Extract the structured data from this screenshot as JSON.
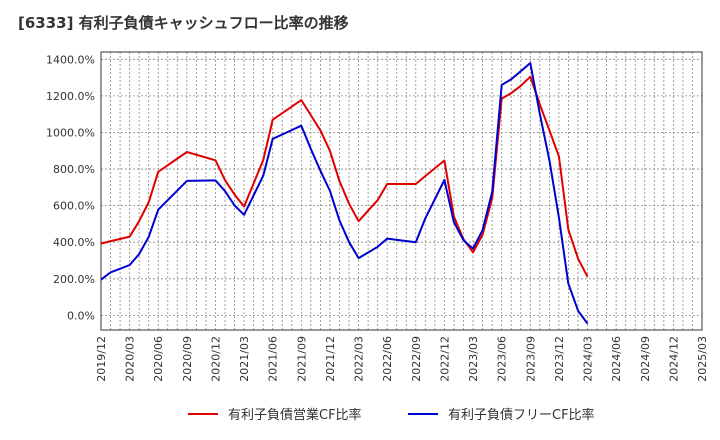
{
  "chart_data": {
    "type": "line",
    "title": "[6333]  有利子負債キャッシュフロー比率の推移",
    "y_ticks": [
      "1400.0%",
      "1200.0%",
      "1000.0%",
      "800.0%",
      "600.0%",
      "400.0%",
      "200.0%",
      "0.0%"
    ],
    "y_tick_values": [
      1400,
      1200,
      1000,
      800,
      600,
      400,
      200,
      0
    ],
    "ylim": [
      -80,
      1440
    ],
    "x_ticks": [
      "2019/12",
      "2020/03",
      "2020/06",
      "2020/09",
      "2020/12",
      "2021/03",
      "2021/06",
      "2021/09",
      "2021/12",
      "2022/03",
      "2022/06",
      "2022/09",
      "2022/12",
      "2023/03",
      "2023/06",
      "2023/09",
      "2023/12",
      "2024/03",
      "2024/06",
      "2024/09",
      "2024/12",
      "2025/03"
    ],
    "grid": true,
    "legend_position": "bottom",
    "series": [
      {
        "name": "有利子負債営業CF比率",
        "color": "#e00000",
        "points": [
          {
            "x": 0,
            "y": 393
          },
          {
            "x": 1,
            "y": 430
          },
          {
            "x": 1.33,
            "y": 515
          },
          {
            "x": 1.67,
            "y": 620
          },
          {
            "x": 2,
            "y": 785
          },
          {
            "x": 3,
            "y": 893
          },
          {
            "x": 4,
            "y": 848
          },
          {
            "x": 4.33,
            "y": 740
          },
          {
            "x": 4.67,
            "y": 660
          },
          {
            "x": 5,
            "y": 595
          },
          {
            "x": 5.67,
            "y": 850
          },
          {
            "x": 6,
            "y": 1070
          },
          {
            "x": 7,
            "y": 1177
          },
          {
            "x": 7.33,
            "y": 1095
          },
          {
            "x": 7.67,
            "y": 1010
          },
          {
            "x": 8,
            "y": 898
          },
          {
            "x": 8.33,
            "y": 735
          },
          {
            "x": 8.67,
            "y": 610
          },
          {
            "x": 9,
            "y": 515
          },
          {
            "x": 9.67,
            "y": 630
          },
          {
            "x": 10,
            "y": 718
          },
          {
            "x": 11,
            "y": 718
          },
          {
            "x": 11.67,
            "y": 805
          },
          {
            "x": 12,
            "y": 847
          },
          {
            "x": 12.33,
            "y": 540
          },
          {
            "x": 12.67,
            "y": 415
          },
          {
            "x": 13,
            "y": 345
          },
          {
            "x": 13.33,
            "y": 440
          },
          {
            "x": 13.67,
            "y": 640
          },
          {
            "x": 14,
            "y": 1185
          },
          {
            "x": 14.33,
            "y": 1215
          },
          {
            "x": 14.67,
            "y": 1255
          },
          {
            "x": 15,
            "y": 1305
          },
          {
            "x": 15.33,
            "y": 1155
          },
          {
            "x": 15.67,
            "y": 1010
          },
          {
            "x": 16,
            "y": 870
          },
          {
            "x": 16.33,
            "y": 470
          },
          {
            "x": 16.67,
            "y": 310
          },
          {
            "x": 17,
            "y": 212
          }
        ]
      },
      {
        "name": "有利子負債フリーCF比率",
        "color": "#0000d0",
        "points": [
          {
            "x": 0,
            "y": 195
          },
          {
            "x": 0.33,
            "y": 235
          },
          {
            "x": 1,
            "y": 275
          },
          {
            "x": 1.33,
            "y": 335
          },
          {
            "x": 1.67,
            "y": 430
          },
          {
            "x": 2,
            "y": 578
          },
          {
            "x": 3,
            "y": 735
          },
          {
            "x": 4,
            "y": 738
          },
          {
            "x": 4.33,
            "y": 680
          },
          {
            "x": 4.67,
            "y": 600
          },
          {
            "x": 5,
            "y": 550
          },
          {
            "x": 5.67,
            "y": 765
          },
          {
            "x": 6,
            "y": 965
          },
          {
            "x": 7,
            "y": 1037
          },
          {
            "x": 7.33,
            "y": 910
          },
          {
            "x": 7.67,
            "y": 790
          },
          {
            "x": 8,
            "y": 680
          },
          {
            "x": 8.33,
            "y": 520
          },
          {
            "x": 8.67,
            "y": 400
          },
          {
            "x": 9,
            "y": 313
          },
          {
            "x": 9.67,
            "y": 375
          },
          {
            "x": 10,
            "y": 420
          },
          {
            "x": 11,
            "y": 400
          },
          {
            "x": 11.33,
            "y": 530
          },
          {
            "x": 12,
            "y": 740
          },
          {
            "x": 12.33,
            "y": 510
          },
          {
            "x": 12.67,
            "y": 410
          },
          {
            "x": 13,
            "y": 365
          },
          {
            "x": 13.33,
            "y": 465
          },
          {
            "x": 13.67,
            "y": 675
          },
          {
            "x": 14,
            "y": 1260
          },
          {
            "x": 14.33,
            "y": 1290
          },
          {
            "x": 14.67,
            "y": 1335
          },
          {
            "x": 15,
            "y": 1380
          },
          {
            "x": 15.33,
            "y": 1105
          },
          {
            "x": 15.67,
            "y": 845
          },
          {
            "x": 16,
            "y": 535
          },
          {
            "x": 16.33,
            "y": 175
          },
          {
            "x": 16.67,
            "y": 25
          },
          {
            "x": 17,
            "y": -45
          }
        ]
      }
    ]
  }
}
